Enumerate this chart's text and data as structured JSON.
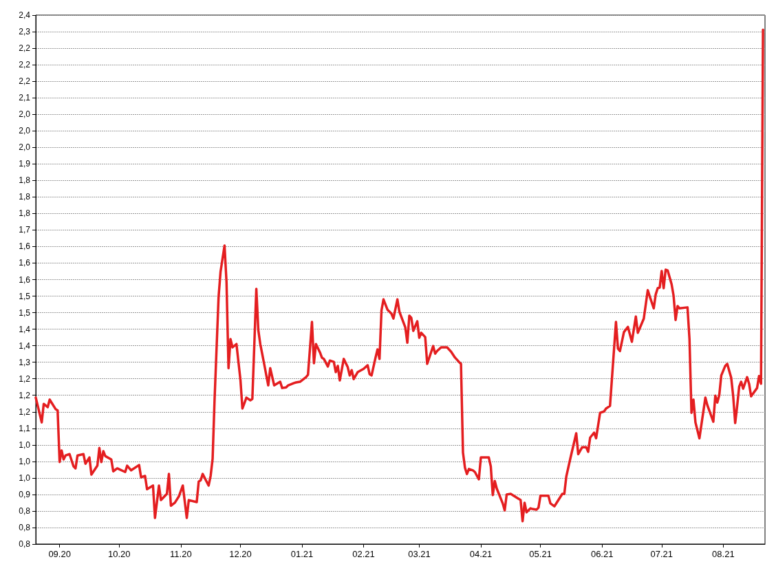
{
  "chart_data": {
    "type": "line",
    "line_style": "solid",
    "marker": "none",
    "grid": "y",
    "xlim": [
      "2020-08-20",
      "2021-08-22"
    ],
    "xticks": [
      {
        "value": "2020-09-01",
        "label": "09.20"
      },
      {
        "value": "2020-10-01",
        "label": "10.20"
      },
      {
        "value": "2020-11-01",
        "label": "11.20"
      },
      {
        "value": "2020-12-01",
        "label": "12.20"
      },
      {
        "value": "2021-01-01",
        "label": "01.21"
      },
      {
        "value": "2021-02-01",
        "label": "02.21"
      },
      {
        "value": "2021-03-01",
        "label": "03.21"
      },
      {
        "value": "2021-04-01",
        "label": "04.21"
      },
      {
        "value": "2021-05-01",
        "label": "05.21"
      },
      {
        "value": "2021-06-01",
        "label": "06.21"
      },
      {
        "value": "2021-07-01",
        "label": "07.21"
      },
      {
        "value": "2021-08-01",
        "label": "08.21"
      }
    ],
    "ylim": [
      0.75,
      2.35
    ],
    "yticks": [
      {
        "value": 0.75,
        "label": "0,8"
      },
      {
        "value": 0.8,
        "label": "0,8"
      },
      {
        "value": 0.85,
        "label": "0,8"
      },
      {
        "value": 0.9,
        "label": "0,9"
      },
      {
        "value": 0.95,
        "label": "1,0"
      },
      {
        "value": 1.0,
        "label": "1,0"
      },
      {
        "value": 1.05,
        "label": "1,0"
      },
      {
        "value": 1.1,
        "label": "1,1"
      },
      {
        "value": 1.15,
        "label": "1,2"
      },
      {
        "value": 1.2,
        "label": "1,2"
      },
      {
        "value": 1.25,
        "label": "1,2"
      },
      {
        "value": 1.3,
        "label": "1,3"
      },
      {
        "value": 1.35,
        "label": "1,4"
      },
      {
        "value": 1.4,
        "label": "1,4"
      },
      {
        "value": 1.45,
        "label": "1,5"
      },
      {
        "value": 1.5,
        "label": "1,5"
      },
      {
        "value": 1.55,
        "label": "1,6"
      },
      {
        "value": 1.6,
        "label": "1,6"
      },
      {
        "value": 1.65,
        "label": "1,6"
      },
      {
        "value": 1.7,
        "label": "1,7"
      },
      {
        "value": 1.75,
        "label": "1,8"
      },
      {
        "value": 1.8,
        "label": "1,8"
      },
      {
        "value": 1.85,
        "label": "1,8"
      },
      {
        "value": 1.9,
        "label": "1,9"
      },
      {
        "value": 1.95,
        "label": "2,0"
      },
      {
        "value": 2.0,
        "label": "2,0"
      },
      {
        "value": 2.05,
        "label": "2,0"
      },
      {
        "value": 2.1,
        "label": "2,1"
      },
      {
        "value": 2.15,
        "label": "2,2"
      },
      {
        "value": 2.2,
        "label": "2,2"
      },
      {
        "value": 2.25,
        "label": "2,2"
      },
      {
        "value": 2.3,
        "label": "2,3"
      },
      {
        "value": 2.35,
        "label": "2,4"
      }
    ],
    "series": [
      {
        "color": "#e41e20",
        "x": [
          "2020-08-20",
          "2020-08-23",
          "2020-08-24",
          "2020-08-26",
          "2020-08-27",
          "2020-08-30",
          "2020-08-31",
          "2020-09-01",
          "2020-09-02",
          "2020-09-03",
          "2020-09-04",
          "2020-09-06",
          "2020-09-08",
          "2020-09-09",
          "2020-09-10",
          "2020-09-13",
          "2020-09-14",
          "2020-09-16",
          "2020-09-17",
          "2020-09-20",
          "2020-09-21",
          "2020-09-22",
          "2020-09-23",
          "2020-09-24",
          "2020-09-27",
          "2020-09-28",
          "2020-09-30",
          "2020-10-04",
          "2020-10-05",
          "2020-10-07",
          "2020-10-11",
          "2020-10-12",
          "2020-10-14",
          "2020-10-15",
          "2020-10-18",
          "2020-10-19",
          "2020-10-21",
          "2020-10-22",
          "2020-10-25",
          "2020-10-26",
          "2020-10-27",
          "2020-10-29",
          "2020-10-31",
          "2020-11-02",
          "2020-11-04",
          "2020-11-05",
          "2020-11-09",
          "2020-11-10",
          "2020-11-11",
          "2020-11-12",
          "2020-11-15",
          "2020-11-16",
          "2020-11-17",
          "2020-11-18",
          "2020-11-20",
          "2020-11-21",
          "2020-11-23",
          "2020-11-24",
          "2020-11-25",
          "2020-11-26",
          "2020-11-27",
          "2020-11-29",
          "2020-12-01",
          "2020-12-02",
          "2020-12-03",
          "2020-12-04",
          "2020-12-06",
          "2020-12-07",
          "2020-12-09",
          "2020-12-10",
          "2020-12-11",
          "2020-12-13",
          "2020-12-15",
          "2020-12-16",
          "2020-12-18",
          "2020-12-21",
          "2020-12-22",
          "2020-12-24",
          "2020-12-25",
          "2020-12-28",
          "2020-12-29",
          "2020-12-31",
          "2021-01-03",
          "2021-01-04",
          "2021-01-06",
          "2021-01-07",
          "2021-01-08",
          "2021-01-10",
          "2021-01-11",
          "2021-01-12",
          "2021-01-14",
          "2021-01-15",
          "2021-01-17",
          "2021-01-18",
          "2021-01-19",
          "2021-01-20",
          "2021-01-22",
          "2021-01-24",
          "2021-01-25",
          "2021-01-26",
          "2021-01-27",
          "2021-01-29",
          "2021-02-01",
          "2021-02-03",
          "2021-02-04",
          "2021-02-05",
          "2021-02-07",
          "2021-02-08",
          "2021-02-09",
          "2021-02-10",
          "2021-02-11",
          "2021-02-13",
          "2021-02-15",
          "2021-02-16",
          "2021-02-18",
          "2021-02-19",
          "2021-02-22",
          "2021-02-23",
          "2021-02-24",
          "2021-02-25",
          "2021-02-26",
          "2021-02-28",
          "2021-03-01",
          "2021-03-02",
          "2021-03-04",
          "2021-03-05",
          "2021-03-08",
          "2021-03-09",
          "2021-03-10",
          "2021-03-12",
          "2021-03-15",
          "2021-03-17",
          "2021-03-19",
          "2021-03-21",
          "2021-03-22",
          "2021-03-23",
          "2021-03-24",
          "2021-03-25",
          "2021-03-26",
          "2021-03-28",
          "2021-03-29",
          "2021-03-31",
          "2021-04-01",
          "2021-04-05",
          "2021-04-06",
          "2021-04-07",
          "2021-04-08",
          "2021-04-09",
          "2021-04-12",
          "2021-04-13",
          "2021-04-14",
          "2021-04-16",
          "2021-04-20",
          "2021-04-21",
          "2021-04-22",
          "2021-04-23",
          "2021-04-24",
          "2021-04-26",
          "2021-04-27",
          "2021-04-29",
          "2021-04-30",
          "2021-05-01",
          "2021-05-05",
          "2021-05-06",
          "2021-05-08",
          "2021-05-12",
          "2021-05-13",
          "2021-05-14",
          "2021-05-16",
          "2021-05-19",
          "2021-05-20",
          "2021-05-22",
          "2021-05-24",
          "2021-05-25",
          "2021-05-26",
          "2021-05-28",
          "2021-05-29",
          "2021-05-31",
          "2021-06-02",
          "2021-06-03",
          "2021-06-05",
          "2021-06-08",
          "2021-06-09",
          "2021-06-10",
          "2021-06-12",
          "2021-06-14",
          "2021-06-16",
          "2021-06-18",
          "2021-06-19",
          "2021-06-22",
          "2021-06-24",
          "2021-06-25",
          "2021-06-27",
          "2021-06-28",
          "2021-06-29",
          "2021-06-30",
          "2021-07-01",
          "2021-07-02",
          "2021-07-03",
          "2021-07-04",
          "2021-07-06",
          "2021-07-07",
          "2021-07-08",
          "2021-07-09",
          "2021-07-10",
          "2021-07-14",
          "2021-07-15",
          "2021-07-16",
          "2021-07-17",
          "2021-07-18",
          "2021-07-20",
          "2021-07-23",
          "2021-07-24",
          "2021-07-27",
          "2021-07-28",
          "2021-07-29",
          "2021-07-30",
          "2021-07-31",
          "2021-08-02",
          "2021-08-03",
          "2021-08-05",
          "2021-08-06",
          "2021-08-07",
          "2021-08-08",
          "2021-08-09",
          "2021-08-10",
          "2021-08-11",
          "2021-08-13",
          "2021-08-14",
          "2021-08-15",
          "2021-08-18",
          "2021-08-19",
          "2021-08-20",
          "2021-08-21"
        ],
        "values": [
          1.193,
          1.118,
          1.174,
          1.164,
          1.187,
          1.158,
          1.154,
          0.998,
          1.033,
          1.006,
          1.018,
          1.022,
          0.985,
          0.979,
          1.018,
          1.022,
          0.993,
          1.012,
          0.96,
          0.987,
          1.041,
          0.998,
          1.031,
          1.016,
          1.006,
          0.97,
          0.979,
          0.968,
          0.987,
          0.973,
          0.989,
          0.952,
          0.956,
          0.916,
          0.927,
          0.829,
          0.927,
          0.883,
          0.902,
          0.962,
          0.866,
          0.875,
          0.894,
          0.927,
          0.829,
          0.883,
          0.877,
          0.939,
          0.943,
          0.962,
          0.927,
          0.956,
          1.008,
          1.189,
          1.497,
          1.574,
          1.653,
          1.542,
          1.282,
          1.37,
          1.345,
          1.355,
          1.247,
          1.16,
          1.176,
          1.193,
          1.185,
          1.189,
          1.522,
          1.397,
          1.355,
          1.293,
          1.23,
          1.282,
          1.23,
          1.241,
          1.222,
          1.224,
          1.23,
          1.237,
          1.239,
          1.241,
          1.255,
          1.262,
          1.422,
          1.297,
          1.355,
          1.33,
          1.314,
          1.31,
          1.287,
          1.305,
          1.301,
          1.27,
          1.289,
          1.245,
          1.31,
          1.285,
          1.26,
          1.276,
          1.249,
          1.27,
          1.28,
          1.291,
          1.264,
          1.26,
          1.314,
          1.339,
          1.31,
          1.457,
          1.49,
          1.459,
          1.447,
          1.432,
          1.49,
          1.453,
          1.405,
          1.359,
          1.441,
          1.434,
          1.395,
          1.424,
          1.374,
          1.389,
          1.376,
          1.295,
          1.349,
          1.326,
          1.334,
          1.345,
          1.345,
          1.332,
          1.314,
          1.301,
          1.295,
          1.027,
          0.981,
          0.962,
          0.977,
          0.973,
          0.968,
          0.946,
          1.012,
          1.012,
          0.985,
          0.898,
          0.941,
          0.918,
          0.873,
          0.852,
          0.9,
          0.902,
          0.887,
          0.883,
          0.819,
          0.875,
          0.846,
          0.858,
          0.856,
          0.854,
          0.86,
          0.896,
          0.896,
          0.873,
          0.864,
          0.902,
          0.902,
          0.954,
          1.008,
          1.085,
          1.022,
          1.043,
          1.043,
          1.029,
          1.072,
          1.087,
          1.07,
          1.147,
          1.151,
          1.16,
          1.168,
          1.422,
          1.341,
          1.334,
          1.391,
          1.407,
          1.362,
          1.438,
          1.389,
          1.432,
          1.518,
          1.499,
          1.463,
          1.505,
          1.524,
          1.526,
          1.576,
          1.524,
          1.58,
          1.578,
          1.536,
          1.501,
          1.428,
          1.47,
          1.463,
          1.466,
          1.37,
          1.147,
          1.187,
          1.118,
          1.07,
          1.193,
          1.17,
          1.12,
          1.199,
          1.178,
          1.201,
          1.26,
          1.289,
          1.295,
          1.253,
          1.197,
          1.116,
          1.168,
          1.226,
          1.241,
          1.22,
          1.255,
          1.235,
          1.197,
          1.222,
          1.258,
          1.235,
          2.306
        ]
      }
    ]
  }
}
